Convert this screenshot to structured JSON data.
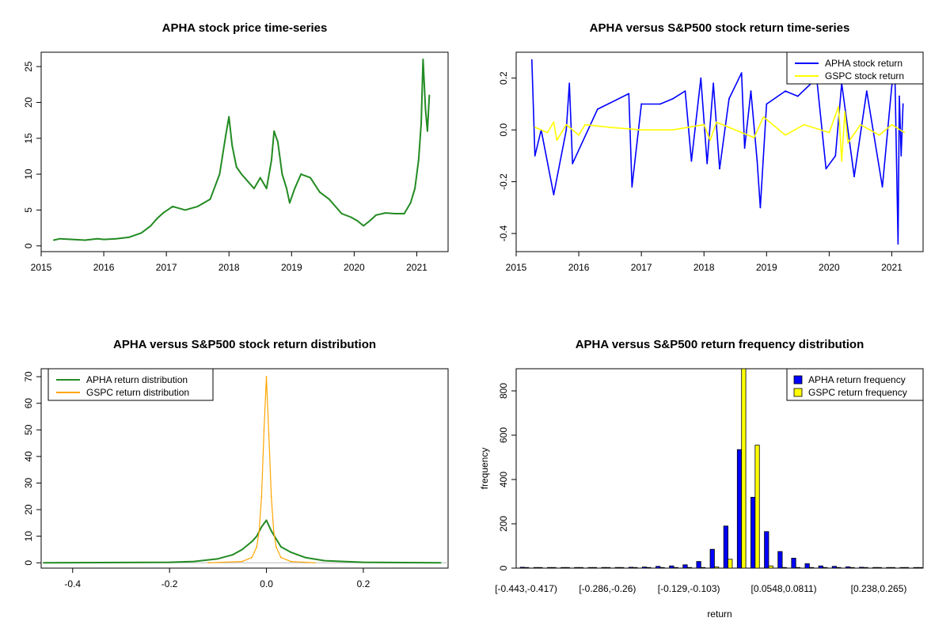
{
  "colors": {
    "apha": "#0000FF",
    "gspc": "#FFFF00",
    "price": "#228B22",
    "apha_density": "#228B22",
    "gspc_density": "#FFA500",
    "frame": "#000000"
  },
  "chart_data": [
    {
      "id": "price",
      "type": "line",
      "title": "APHA stock price time-series",
      "xlabel": "",
      "ylabel": "",
      "x_ticks": [
        "2015",
        "2016",
        "2017",
        "2018",
        "2019",
        "2020",
        "2021"
      ],
      "y_ticks": [
        "0",
        "5",
        "10",
        "15",
        "20",
        "25"
      ],
      "xlim": [
        2015.0,
        2021.5
      ],
      "ylim": [
        -0.8,
        27.0
      ],
      "grid": false,
      "series": [
        {
          "color": "#228B22",
          "x": [
            2015.2,
            2015.3,
            2015.5,
            2015.7,
            2015.9,
            2016.0,
            2016.2,
            2016.4,
            2016.6,
            2016.75,
            2016.85,
            2016.95,
            2017.1,
            2017.3,
            2017.5,
            2017.7,
            2017.85,
            2017.95,
            2018.0,
            2018.05,
            2018.12,
            2018.2,
            2018.3,
            2018.4,
            2018.5,
            2018.6,
            2018.68,
            2018.72,
            2018.78,
            2018.85,
            2018.92,
            2018.97,
            2019.05,
            2019.15,
            2019.3,
            2019.45,
            2019.6,
            2019.8,
            2019.95,
            2020.05,
            2020.15,
            2020.25,
            2020.35,
            2020.5,
            2020.65,
            2020.8,
            2020.9,
            2020.97,
            2021.03,
            2021.07,
            2021.1,
            2021.14,
            2021.17,
            2021.2
          ],
          "y": [
            0.8,
            1.0,
            0.9,
            0.8,
            1.0,
            0.9,
            1.0,
            1.2,
            1.8,
            2.8,
            3.8,
            4.6,
            5.5,
            5.0,
            5.5,
            6.5,
            10.0,
            15.5,
            18.0,
            14.0,
            11.0,
            10.0,
            9.0,
            8.0,
            9.5,
            8.0,
            12.0,
            16.0,
            14.5,
            10.0,
            8.0,
            6.0,
            8.0,
            10.0,
            9.5,
            7.5,
            6.5,
            4.5,
            4.0,
            3.5,
            2.8,
            3.5,
            4.3,
            4.6,
            4.5,
            4.5,
            6.0,
            8.0,
            12.0,
            17.0,
            26.0,
            19.0,
            16.0,
            21.0
          ]
        }
      ]
    },
    {
      "id": "returns",
      "type": "line",
      "title": "APHA versus S&P500 stock return time-series",
      "xlabel": "",
      "ylabel": "",
      "x_ticks": [
        "2015",
        "2016",
        "2017",
        "2018",
        "2019",
        "2020",
        "2021"
      ],
      "y_ticks": [
        "-0.4",
        "-0.2",
        "0.0",
        "0.2"
      ],
      "xlim": [
        2015.0,
        2021.5
      ],
      "ylim": [
        -0.47,
        0.3
      ],
      "legend": {
        "position": "top-right",
        "entries": [
          "APHA stock return",
          "GSPC stock return"
        ]
      },
      "series": [
        {
          "name": "APHA stock return",
          "color": "#0000FF",
          "x": [
            2015.25,
            2015.3,
            2015.4,
            2015.6,
            2015.8,
            2015.85,
            2015.9,
            2016.3,
            2016.8,
            2016.85,
            2017.0,
            2017.3,
            2017.5,
            2017.7,
            2017.8,
            2017.95,
            2018.05,
            2018.15,
            2018.25,
            2018.4,
            2018.6,
            2018.65,
            2018.75,
            2018.85,
            2018.9,
            2019.0,
            2019.3,
            2019.5,
            2019.8,
            2019.95,
            2020.1,
            2020.2,
            2020.4,
            2020.6,
            2020.85,
            2021.0,
            2021.05,
            2021.1,
            2021.12,
            2021.15,
            2021.18
          ],
          "y": [
            0.27,
            -0.1,
            0.0,
            -0.25,
            0.0,
            0.18,
            -0.13,
            0.08,
            0.14,
            -0.22,
            0.1,
            0.1,
            0.12,
            0.15,
            -0.12,
            0.2,
            -0.13,
            0.18,
            -0.15,
            0.12,
            0.22,
            -0.07,
            0.15,
            -0.12,
            -0.3,
            0.1,
            0.15,
            0.13,
            0.2,
            -0.15,
            -0.1,
            0.18,
            -0.18,
            0.15,
            -0.22,
            0.17,
            0.22,
            -0.44,
            0.13,
            -0.1,
            0.1
          ]
        },
        {
          "name": "GSPC stock return",
          "color": "#FFFF00",
          "x": [
            2015.3,
            2015.5,
            2015.6,
            2015.65,
            2015.8,
            2016.0,
            2016.1,
            2016.5,
            2017.0,
            2017.5,
            2018.0,
            2018.1,
            2018.2,
            2018.8,
            2018.95,
            2019.3,
            2019.6,
            2020.0,
            2020.15,
            2020.2,
            2020.25,
            2020.3,
            2020.5,
            2020.8,
            2021.0,
            2021.2
          ],
          "y": [
            0.01,
            -0.01,
            0.03,
            -0.04,
            0.02,
            -0.02,
            0.02,
            0.01,
            0.0,
            0.0,
            0.02,
            -0.04,
            0.03,
            -0.03,
            0.05,
            -0.02,
            0.02,
            -0.01,
            0.09,
            -0.12,
            0.07,
            -0.05,
            0.02,
            -0.02,
            0.02,
            -0.01
          ]
        }
      ]
    },
    {
      "id": "density",
      "type": "line",
      "title": "APHA versus S&P500 stock return distribution",
      "xlabel": "",
      "ylabel": "",
      "x_ticks": [
        "-0.4",
        "-0.2",
        "0.0",
        "0.2"
      ],
      "y_ticks": [
        "0",
        "10",
        "20",
        "30",
        "40",
        "50",
        "60",
        "70"
      ],
      "xlim": [
        -0.465,
        0.375
      ],
      "ylim": [
        -2.0,
        73.0
      ],
      "legend": {
        "position": "top-left",
        "entries": [
          "APHA return distribution",
          "GSPC return distribution"
        ]
      },
      "series": [
        {
          "name": "APHA return distribution",
          "color": "#228B22",
          "x": [
            -0.46,
            -0.2,
            -0.15,
            -0.1,
            -0.07,
            -0.05,
            -0.03,
            -0.02,
            -0.01,
            0.0,
            0.01,
            0.02,
            0.03,
            0.05,
            0.08,
            0.12,
            0.2,
            0.36
          ],
          "y": [
            0.0,
            0.2,
            0.5,
            1.5,
            3.0,
            5.0,
            8.0,
            10.0,
            13.5,
            16.0,
            12.0,
            9.0,
            6.0,
            4.0,
            2.0,
            0.8,
            0.2,
            0.0
          ]
        },
        {
          "name": "GSPC return distribution",
          "color": "#FFA500",
          "x": [
            -0.12,
            -0.05,
            -0.03,
            -0.02,
            -0.015,
            -0.01,
            -0.005,
            0.0,
            0.005,
            0.01,
            0.015,
            0.02,
            0.03,
            0.05,
            0.1
          ],
          "y": [
            0.0,
            0.5,
            2.0,
            6.0,
            12.0,
            25.0,
            50.0,
            70.0,
            48.0,
            25.0,
            12.0,
            6.0,
            2.0,
            0.5,
            0.0
          ]
        }
      ]
    },
    {
      "id": "frequency",
      "type": "bar",
      "title": "APHA versus S&P500 return frequency distribution",
      "xlabel": "return",
      "ylabel": "frequency",
      "category_tick_labels": [
        "[-0.443,-0.417)",
        "[-0.286,-0.26)",
        "[-0.129,-0.103)",
        "[0.0548,0.0811)",
        "[0.238,0.265)"
      ],
      "y_ticks": [
        "0",
        "200",
        "400",
        "600",
        "800"
      ],
      "ylim": [
        0,
        900
      ],
      "legend": {
        "position": "top-right",
        "entries": [
          "APHA return frequency",
          "GSPC return frequency"
        ]
      },
      "series": [
        {
          "name": "APHA return frequency",
          "color": "#0000FF",
          "values": [
            4,
            0,
            1,
            0,
            1,
            2,
            3,
            3,
            4,
            5,
            8,
            10,
            15,
            30,
            85,
            190,
            535,
            320,
            165,
            75,
            45,
            20,
            10,
            8,
            6,
            4,
            3,
            2,
            1,
            1
          ]
        },
        {
          "name": "GSPC return frequency",
          "color": "#FFFF00",
          "values": [
            0,
            0,
            0,
            0,
            0,
            0,
            0,
            0,
            0,
            0,
            0,
            0,
            0,
            2,
            5,
            40,
            900,
            555,
            10,
            2,
            0,
            0,
            0,
            0,
            0,
            0,
            0,
            0,
            0,
            0
          ]
        }
      ]
    }
  ]
}
